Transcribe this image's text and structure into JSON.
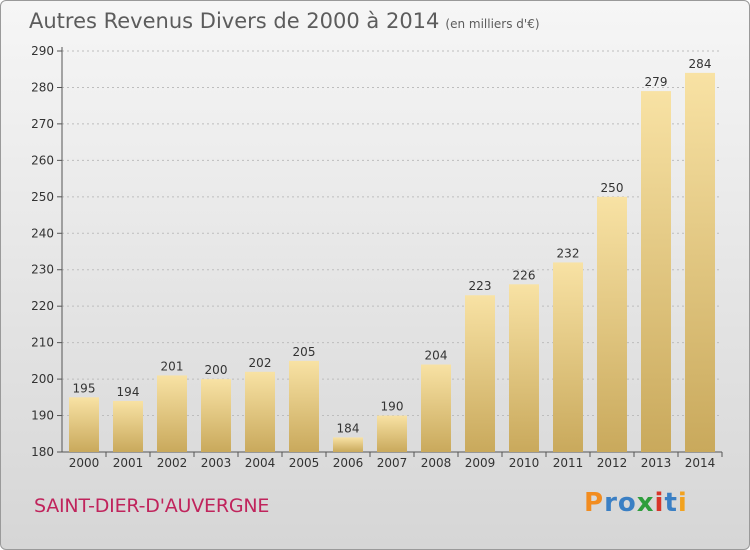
{
  "title": "Autres Revenus Divers de 2000 à 2014",
  "subtitle": "(en milliers d'€)",
  "commune": "SAINT-DIER-D'AUVERGNE",
  "logo": {
    "text": "Proxiti",
    "letters": [
      "P",
      "r",
      "o",
      "x",
      "i",
      "t",
      "i"
    ],
    "colors": [
      "#f28c1f",
      "#3a7fc4",
      "#3a7fc4",
      "#2e9e3c",
      "#d8352a",
      "#3a7fc4",
      "#f2a21f"
    ]
  },
  "colors": {
    "bar_light": "#f8e2a4",
    "bar_dark": "#c9a95c",
    "commune": "#c0245c"
  },
  "chart_data": {
    "type": "bar",
    "categories": [
      "2000",
      "2001",
      "2002",
      "2003",
      "2004",
      "2005",
      "2006",
      "2007",
      "2008",
      "2009",
      "2010",
      "2011",
      "2012",
      "2013",
      "2014"
    ],
    "values": [
      195,
      194,
      201,
      200,
      202,
      205,
      184,
      190,
      204,
      223,
      226,
      232,
      250,
      279,
      284
    ],
    "ylim": [
      180,
      290
    ],
    "yticks": [
      180,
      190,
      200,
      210,
      220,
      230,
      240,
      250,
      260,
      270,
      280,
      290
    ],
    "grid": true,
    "xlabel": "",
    "ylabel": ""
  }
}
